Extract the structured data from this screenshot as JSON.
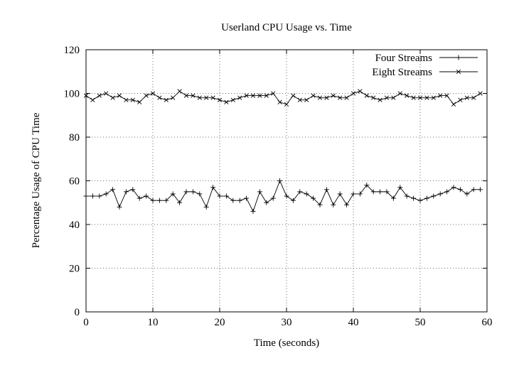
{
  "figure": {
    "background": "#ffffff",
    "line_color": "#000000",
    "grid_color": "#444444"
  },
  "chart_data": {
    "type": "line",
    "title": "Userland CPU Usage vs. Time",
    "xlabel": "Time (seconds)",
    "ylabel": "Percentage Usage of CPU Time",
    "xlim": [
      0,
      60
    ],
    "ylim": [
      0,
      120
    ],
    "xticks": [
      0,
      10,
      20,
      30,
      40,
      50,
      60
    ],
    "yticks": [
      0,
      20,
      40,
      60,
      80,
      100,
      120
    ],
    "grid": true,
    "legend_position": "top-right-inside",
    "x": [
      0,
      1,
      2,
      3,
      4,
      5,
      6,
      7,
      8,
      9,
      10,
      11,
      12,
      13,
      14,
      15,
      16,
      17,
      18,
      19,
      20,
      21,
      22,
      23,
      24,
      25,
      26,
      27,
      28,
      29,
      30,
      31,
      32,
      33,
      34,
      35,
      36,
      37,
      38,
      39,
      40,
      41,
      42,
      43,
      44,
      45,
      46,
      47,
      48,
      49,
      50,
      51,
      52,
      53,
      54,
      55,
      56,
      57,
      58,
      59
    ],
    "series": [
      {
        "name": "Four Streams",
        "marker": "plus",
        "values": [
          53,
          53,
          53,
          54,
          56,
          48,
          55,
          56,
          52,
          53,
          51,
          51,
          51,
          54,
          50,
          55,
          55,
          54,
          48,
          57,
          53,
          53,
          51,
          51,
          52,
          46,
          55,
          50,
          52,
          60,
          53,
          51,
          55,
          54,
          52,
          49,
          56,
          49,
          54,
          49,
          54,
          54,
          58,
          55,
          55,
          55,
          52,
          57,
          53,
          52,
          51,
          52,
          53,
          54,
          55,
          57,
          56,
          54,
          56,
          56
        ]
      },
      {
        "name": "Eight Streams",
        "marker": "cross",
        "values": [
          99,
          97,
          99,
          100,
          98,
          99,
          97,
          97,
          96,
          99,
          100,
          98,
          97,
          98,
          101,
          99,
          99,
          98,
          98,
          98,
          97,
          96,
          97,
          98,
          99,
          99,
          99,
          99,
          100,
          96,
          95,
          99,
          97,
          97,
          99,
          98,
          98,
          99,
          98,
          98,
          100,
          101,
          99,
          98,
          97,
          98,
          98,
          100,
          99,
          98,
          98,
          98,
          98,
          99,
          99,
          95,
          97,
          98,
          98,
          100
        ]
      }
    ]
  }
}
